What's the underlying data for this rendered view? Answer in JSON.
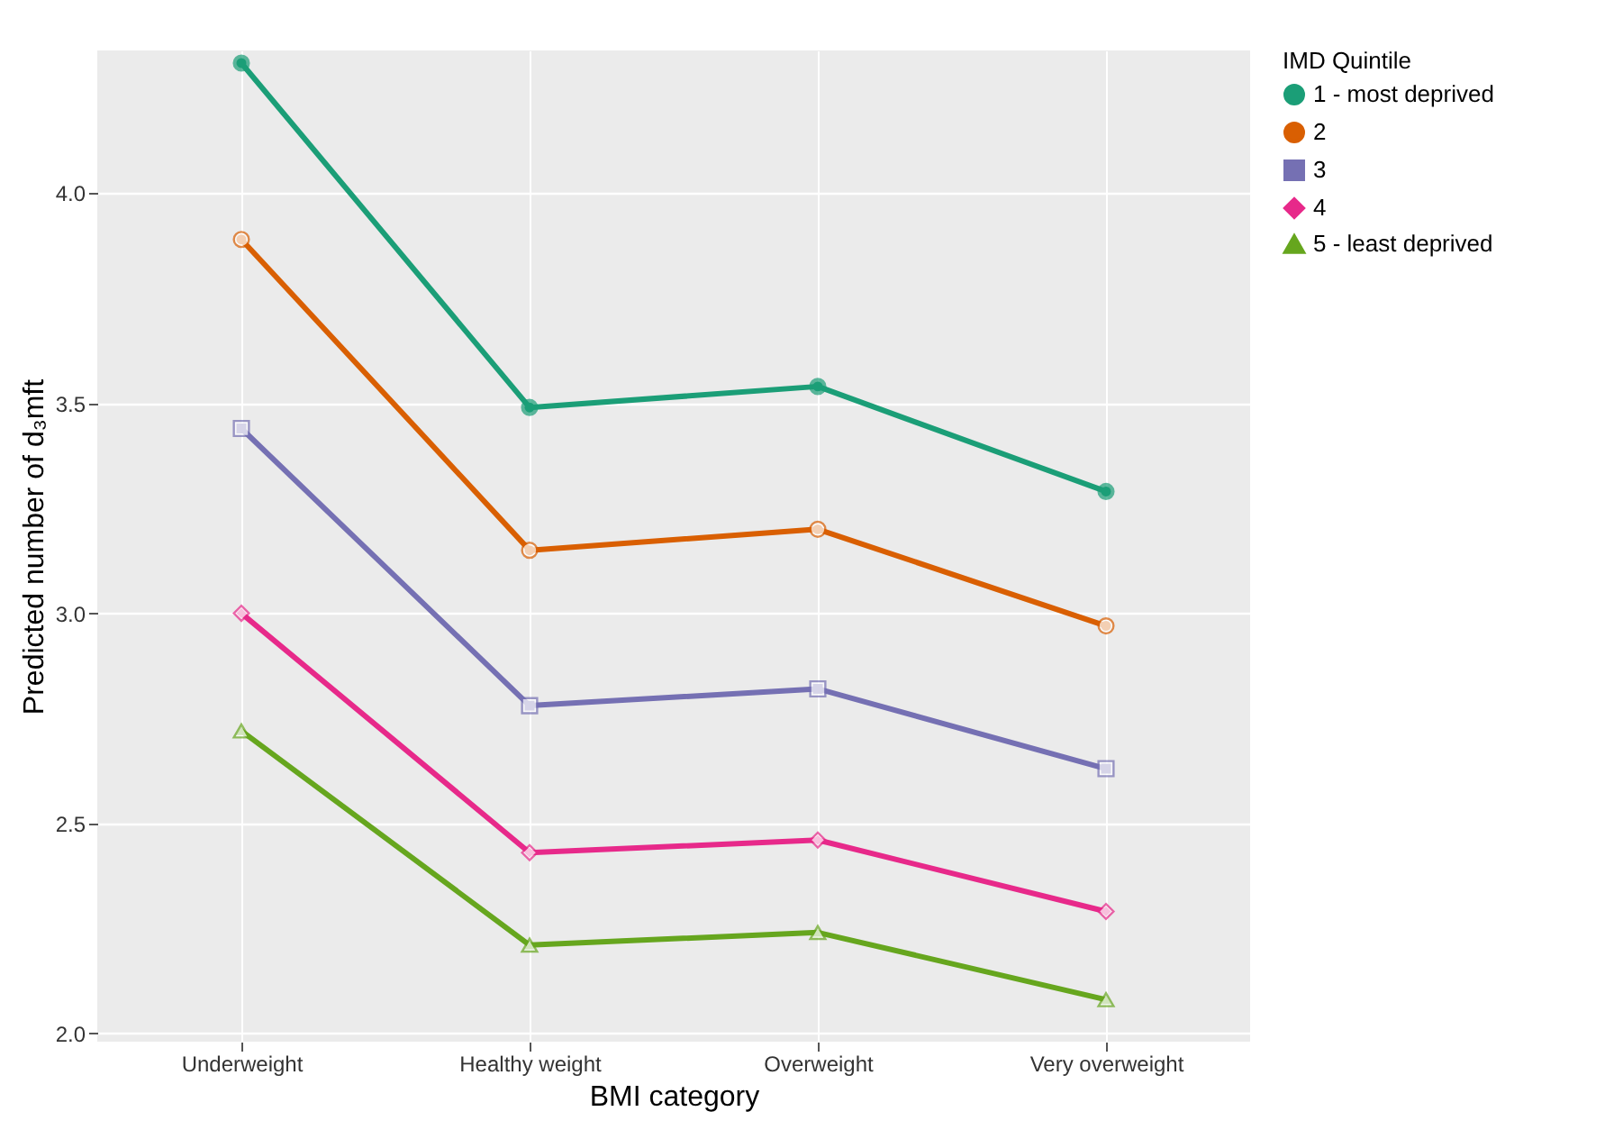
{
  "chart_data": {
    "type": "line",
    "xlabel": "BMI category",
    "ylabel": "Predicted number of d₃mft",
    "legend_title": "IMD Quintile",
    "categories": [
      "Underweight",
      "Healthy weight",
      "Overweight",
      "Very overweight"
    ],
    "series": [
      {
        "name": "1 - most deprived",
        "color": "#1b9e77",
        "marker": "circle",
        "values": [
          4.31,
          3.49,
          3.54,
          3.29
        ]
      },
      {
        "name": "2",
        "color": "#d95f02",
        "marker": "circle",
        "values": [
          3.89,
          3.15,
          3.2,
          2.97
        ]
      },
      {
        "name": "3",
        "color": "#7570b3",
        "marker": "square",
        "values": [
          3.44,
          2.78,
          2.82,
          2.63
        ]
      },
      {
        "name": "4",
        "color": "#e7298a",
        "marker": "diamond",
        "values": [
          3.0,
          2.43,
          2.46,
          2.29
        ]
      },
      {
        "name": "5 - least deprived",
        "color": "#66a61e",
        "marker": "triangle",
        "values": [
          2.72,
          2.21,
          2.24,
          2.08
        ]
      }
    ],
    "ylim": [
      1.98,
      4.34
    ],
    "yticks": [
      {
        "value": 2,
        "label": "2.0"
      },
      {
        "value": 2.5,
        "label": "2.5"
      },
      {
        "value": 3,
        "label": "3.0"
      },
      {
        "value": 3.5,
        "label": "3.5"
      },
      {
        "value": 4,
        "label": "4.0"
      }
    ],
    "grid": true,
    "legend": "right"
  }
}
